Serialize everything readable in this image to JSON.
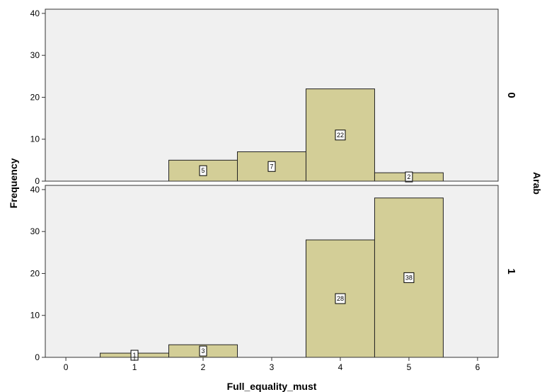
{
  "chart_data": {
    "type": "bar",
    "subtype": "histogram",
    "xlabel": "Full_equality_must",
    "ylabel": "Frequency",
    "facet_label": "Arab",
    "x_ticks": [
      "0",
      "1",
      "2",
      "3",
      "4",
      "5",
      "6"
    ],
    "y_ticks": [
      "0",
      "10",
      "20",
      "30",
      "40"
    ],
    "xlim": [
      -0.3,
      6.3
    ],
    "ylim": [
      0,
      41
    ],
    "bin_width": 1,
    "background_color": "#f0f0f0",
    "bar_color": "#d3ce97",
    "grid": false,
    "panels": [
      {
        "facet_value": "0",
        "bins": [
          2,
          3,
          4,
          5
        ],
        "values": [
          5,
          7,
          22,
          2
        ],
        "labels": [
          "5",
          "7",
          "22",
          "2"
        ]
      },
      {
        "facet_value": "1",
        "bins": [
          1,
          2,
          4,
          5
        ],
        "values": [
          1,
          3,
          28,
          38
        ],
        "labels": [
          "1",
          "3",
          "28",
          "38"
        ]
      }
    ]
  }
}
